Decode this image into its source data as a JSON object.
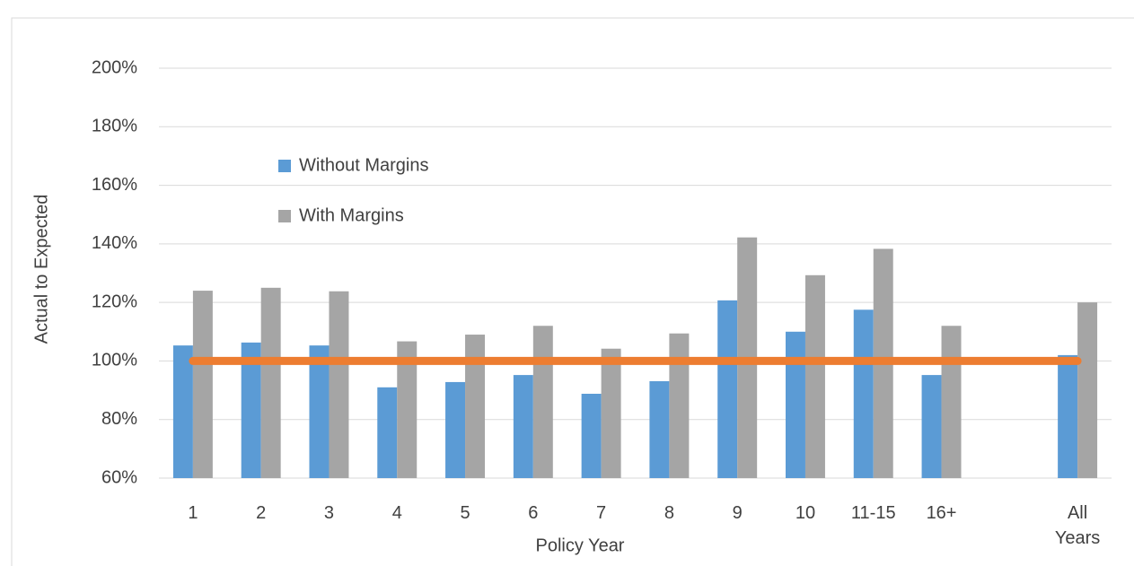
{
  "chart_data": {
    "type": "bar",
    "y_label": "Actual to Expected",
    "x_label": "Policy Year",
    "categories": [
      "1",
      "2",
      "3",
      "4",
      "5",
      "6",
      "7",
      "8",
      "9",
      "10",
      "11-15",
      "16+",
      null,
      "All Years"
    ],
    "series": [
      {
        "name": "Without Margins",
        "color": "#5b9bd5",
        "values": [
          105.3,
          106.3,
          105.3,
          91,
          92.8,
          95.2,
          88.8,
          93.1,
          120.7,
          110,
          117.5,
          95.2,
          null,
          102
        ]
      },
      {
        "name": "With Margins",
        "color": "#a5a5a5",
        "values": [
          124,
          125,
          123.8,
          106.7,
          109,
          112,
          104.2,
          109.4,
          142.2,
          129.3,
          138.3,
          112,
          null,
          120
        ]
      }
    ],
    "target_line": {
      "color": "#ed7d31",
      "values": [
        100,
        100,
        100,
        100,
        100,
        100,
        100,
        100,
        100,
        100,
        100,
        100,
        100,
        100
      ]
    },
    "ylim": [
      60,
      200
    ],
    "yticks": [
      {
        "value": 60,
        "label": "60%"
      },
      {
        "value": 80,
        "label": "80%"
      },
      {
        "value": 100,
        "label": "100%"
      },
      {
        "value": 120,
        "label": "120%"
      },
      {
        "value": 140,
        "label": "140%"
      },
      {
        "value": 160,
        "label": "160%"
      },
      {
        "value": 180,
        "label": "180%"
      },
      {
        "value": 200,
        "label": "200%"
      }
    ],
    "grid": true
  }
}
